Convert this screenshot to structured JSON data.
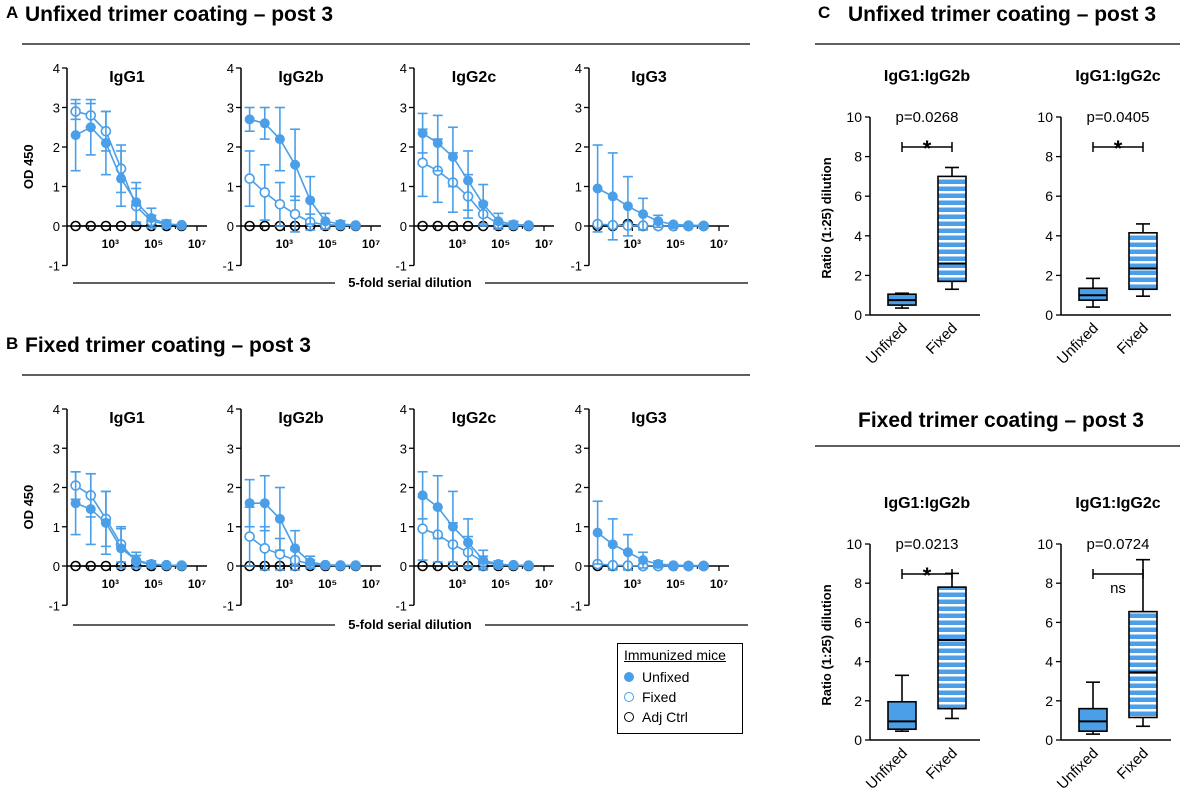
{
  "colors": {
    "blue": "#4A9FE8",
    "black": "#000000",
    "hatch": "#ffffff"
  },
  "panels": {
    "A": {
      "letter": "A",
      "title": "Unfixed trimer coating – post 3"
    },
    "B": {
      "letter": "B",
      "title": "Fixed trimer coating – post 3"
    },
    "C": {
      "letter": "C",
      "title_top": "Unfixed trimer coating – post 3",
      "title_bottom": "Fixed trimer coating – post 3"
    }
  },
  "legend": {
    "title": "Immunized mice",
    "items": [
      {
        "label": "Unfixed",
        "icon": "filled-circle"
      },
      {
        "label": "Fixed",
        "icon": "open-blue-circle"
      },
      {
        "label": "Adj Ctrl",
        "icon": "open-black-circle"
      }
    ]
  },
  "chart_data": [
    {
      "id": "A",
      "type": "line",
      "title": "Unfixed trimer coating – post 3",
      "ylabel": "OD 450",
      "xlabel": "5-fold serial dilution",
      "ylim": [
        -1,
        4
      ],
      "yticks": [
        "4",
        "3",
        "2",
        "1",
        "0",
        "-1"
      ],
      "xscale": "log",
      "xticks": [
        {
          "value": 1000,
          "label": "10³"
        },
        {
          "value": 100000,
          "label": "10⁵"
        },
        {
          "value": 10000000,
          "label": "10⁷"
        }
      ],
      "x": [
        25,
        125,
        625,
        3125,
        15625,
        78125,
        390625,
        1953125
      ],
      "subplots": [
        {
          "title": "IgG1",
          "series": [
            {
              "name": "Unfixed",
              "values": [
                2.3,
                2.5,
                2.1,
                1.2,
                0.6,
                0.2,
                0.05,
                0.02
              ],
              "err": [
                0.9,
                0.7,
                0.8,
                0.7,
                0.5,
                0.25,
                0.1,
                0.05
              ]
            },
            {
              "name": "Fixed",
              "values": [
                2.9,
                2.8,
                2.4,
                1.45,
                0.5,
                0.12,
                0.05,
                0.02
              ],
              "err": [
                0.2,
                0.3,
                0.5,
                0.6,
                0.45,
                0.15,
                0.08,
                0.04
              ]
            },
            {
              "name": "Adj Ctrl",
              "values": [
                0,
                0,
                0,
                0,
                0,
                0,
                0,
                0
              ],
              "err": [
                0,
                0,
                0,
                0,
                0,
                0,
                0,
                0
              ]
            }
          ]
        },
        {
          "title": "IgG2b",
          "series": [
            {
              "name": "Unfixed",
              "values": [
                2.7,
                2.6,
                2.2,
                1.55,
                0.65,
                0.12,
                0.05,
                0.02
              ],
              "err": [
                0.3,
                0.4,
                0.8,
                0.9,
                0.6,
                0.2,
                0.08,
                0.04
              ]
            },
            {
              "name": "Fixed",
              "values": [
                1.2,
                0.85,
                0.55,
                0.3,
                0.1,
                0.03,
                0.02,
                0.01
              ],
              "err": [
                0.7,
                0.7,
                0.55,
                0.45,
                0.2,
                0.06,
                0.04,
                0.02
              ]
            },
            {
              "name": "Adj Ctrl",
              "values": [
                0,
                0,
                0,
                0,
                0,
                0,
                0,
                0
              ],
              "err": [
                0,
                0,
                0,
                0,
                0,
                0,
                0,
                0
              ]
            }
          ]
        },
        {
          "title": "IgG2c",
          "series": [
            {
              "name": "Unfixed",
              "values": [
                2.35,
                2.1,
                1.75,
                1.15,
                0.55,
                0.12,
                0.04,
                0.02
              ],
              "err": [
                0.5,
                0.7,
                0.75,
                0.75,
                0.5,
                0.2,
                0.08,
                0.04
              ]
            },
            {
              "name": "Fixed",
              "values": [
                1.6,
                1.4,
                1.1,
                0.75,
                0.3,
                0.05,
                0.02,
                0.01
              ],
              "err": [
                0.85,
                0.8,
                0.75,
                0.55,
                0.3,
                0.08,
                0.04,
                0.02
              ]
            },
            {
              "name": "Adj Ctrl",
              "values": [
                0,
                0,
                0,
                0,
                0,
                0,
                0,
                0
              ],
              "err": [
                0,
                0,
                0,
                0,
                0,
                0,
                0,
                0
              ]
            }
          ]
        },
        {
          "title": "IgG3",
          "series": [
            {
              "name": "Unfixed",
              "values": [
                0.95,
                0.75,
                0.5,
                0.3,
                0.12,
                0.04,
                0.02,
                0.01
              ],
              "err": [
                1.1,
                1.1,
                0.75,
                0.4,
                0.15,
                0.06,
                0.03,
                0.02
              ]
            },
            {
              "name": "Fixed",
              "values": [
                0.05,
                0.02,
                0.01,
                0.01,
                0,
                0,
                0,
                0
              ],
              "err": [
                0.05,
                0.04,
                0.02,
                0.02,
                0,
                0,
                0,
                0
              ]
            },
            {
              "name": "Adj Ctrl",
              "values": [
                0,
                0,
                0.05,
                0,
                0,
                0,
                0,
                0
              ],
              "err": [
                0,
                0,
                0,
                0,
                0,
                0,
                0,
                0
              ]
            }
          ]
        }
      ]
    },
    {
      "id": "B",
      "type": "line",
      "title": "Fixed trimer coating – post 3",
      "ylabel": "OD 450",
      "xlabel": "5-fold serial dilution",
      "ylim": [
        -1,
        4
      ],
      "yticks": [
        "4",
        "3",
        "2",
        "1",
        "0",
        "-1"
      ],
      "xscale": "log",
      "xticks": [
        {
          "value": 1000,
          "label": "10³"
        },
        {
          "value": 100000,
          "label": "10⁵"
        },
        {
          "value": 10000000,
          "label": "10⁷"
        }
      ],
      "x": [
        25,
        125,
        625,
        3125,
        15625,
        78125,
        390625,
        1953125
      ],
      "subplots": [
        {
          "title": "IgG1",
          "series": [
            {
              "name": "Unfixed",
              "values": [
                1.6,
                1.45,
                1.1,
                0.45,
                0.15,
                0.05,
                0.02,
                0.01
              ],
              "err": [
                0.8,
                0.9,
                0.8,
                0.5,
                0.2,
                0.08,
                0.04,
                0.02
              ]
            },
            {
              "name": "Fixed",
              "values": [
                2.05,
                1.8,
                1.2,
                0.55,
                0.12,
                0.04,
                0.02,
                0.01
              ],
              "err": [
                0.35,
                0.55,
                0.7,
                0.45,
                0.15,
                0.06,
                0.03,
                0.02
              ]
            },
            {
              "name": "Adj Ctrl",
              "values": [
                0,
                0,
                0,
                0,
                0,
                0,
                0,
                0
              ],
              "err": [
                0,
                0,
                0,
                0,
                0,
                0,
                0,
                0
              ]
            }
          ]
        },
        {
          "title": "IgG2b",
          "series": [
            {
              "name": "Unfixed",
              "values": [
                1.6,
                1.6,
                1.2,
                0.45,
                0.1,
                0.03,
                0.02,
                0.01
              ],
              "err": [
                0.6,
                0.7,
                0.8,
                0.45,
                0.15,
                0.05,
                0.03,
                0.02
              ]
            },
            {
              "name": "Fixed",
              "values": [
                0.75,
                0.45,
                0.3,
                0.15,
                0.05,
                0.02,
                0.01,
                0.01
              ],
              "err": [
                0.75,
                0.55,
                0.4,
                0.25,
                0.1,
                0.04,
                0.02,
                0.01
              ]
            },
            {
              "name": "Adj Ctrl",
              "values": [
                0,
                0,
                0,
                0,
                0,
                0,
                0,
                0
              ],
              "err": [
                0,
                0,
                0,
                0,
                0,
                0,
                0,
                0
              ]
            }
          ]
        },
        {
          "title": "IgG2c",
          "series": [
            {
              "name": "Unfixed",
              "values": [
                1.8,
                1.5,
                1.0,
                0.6,
                0.15,
                0.05,
                0.02,
                0.01
              ],
              "err": [
                0.6,
                0.8,
                0.9,
                0.6,
                0.25,
                0.08,
                0.04,
                0.02
              ]
            },
            {
              "name": "Fixed",
              "values": [
                0.95,
                0.8,
                0.55,
                0.35,
                0.1,
                0.03,
                0.02,
                0.01
              ],
              "err": [
                0.8,
                0.7,
                0.55,
                0.4,
                0.15,
                0.05,
                0.03,
                0.01
              ]
            },
            {
              "name": "Adj Ctrl",
              "values": [
                0,
                0,
                0,
                0,
                0,
                0,
                0,
                0
              ],
              "err": [
                0,
                0,
                0,
                0,
                0,
                0,
                0,
                0
              ]
            }
          ]
        },
        {
          "title": "IgG3",
          "series": [
            {
              "name": "Unfixed",
              "values": [
                0.85,
                0.55,
                0.35,
                0.15,
                0.05,
                0.02,
                0.01,
                0.01
              ],
              "err": [
                0.8,
                0.65,
                0.45,
                0.2,
                0.08,
                0.03,
                0.02,
                0.01
              ]
            },
            {
              "name": "Fixed",
              "values": [
                0.05,
                0.02,
                0.01,
                0,
                0,
                0,
                0,
                0
              ],
              "err": [
                0.05,
                0.03,
                0.02,
                0,
                0,
                0,
                0,
                0
              ]
            },
            {
              "name": "Adj Ctrl",
              "values": [
                0,
                0,
                0,
                0,
                0,
                0,
                0,
                0
              ],
              "err": [
                0,
                0,
                0,
                0,
                0,
                0,
                0,
                0
              ]
            }
          ]
        }
      ]
    },
    {
      "id": "C-top",
      "type": "box",
      "title": "Unfixed trimer coating – post 3",
      "ylabel": "Ratio (1:25) dilution",
      "ylim": [
        0,
        10
      ],
      "yticks": [
        "0",
        "2",
        "4",
        "6",
        "8",
        "10"
      ],
      "categories": [
        "Unfixed",
        "Fixed"
      ],
      "subplots": [
        {
          "title": "IgG1:IgG2b",
          "p": "p=0.0268",
          "sig": "*",
          "boxes": [
            {
              "group": "Unfixed",
              "min": 0.35,
              "q1": 0.5,
              "median": 0.75,
              "q3": 1.05,
              "max": 1.1
            },
            {
              "group": "Fixed",
              "min": 1.3,
              "q1": 1.7,
              "median": 2.6,
              "q3": 7.0,
              "max": 7.45
            }
          ]
        },
        {
          "title": "IgG1:IgG2c",
          "p": "p=0.0405",
          "sig": "*",
          "boxes": [
            {
              "group": "Unfixed",
              "min": 0.4,
              "q1": 0.75,
              "median": 1.0,
              "q3": 1.35,
              "max": 1.85
            },
            {
              "group": "Fixed",
              "min": 0.95,
              "q1": 1.3,
              "median": 2.35,
              "q3": 4.15,
              "max": 4.6
            }
          ]
        }
      ]
    },
    {
      "id": "C-bottom",
      "type": "box",
      "title": "Fixed trimer coating – post 3",
      "ylabel": "Ratio (1:25) dilution",
      "ylim": [
        0,
        10
      ],
      "yticks": [
        "0",
        "2",
        "4",
        "6",
        "8",
        "10"
      ],
      "categories": [
        "Unfixed",
        "Fixed"
      ],
      "subplots": [
        {
          "title": "IgG1:IgG2b",
          "p": "p=0.0213",
          "sig": "*",
          "boxes": [
            {
              "group": "Unfixed",
              "min": 0.45,
              "q1": 0.55,
              "median": 0.95,
              "q3": 1.95,
              "max": 3.3
            },
            {
              "group": "Fixed",
              "min": 1.1,
              "q1": 1.6,
              "median": 5.1,
              "q3": 7.8,
              "max": 8.5
            }
          ]
        },
        {
          "title": "IgG1:IgG2c",
          "p": "p=0.0724",
          "sig": "ns",
          "boxes": [
            {
              "group": "Unfixed",
              "min": 0.3,
              "q1": 0.45,
              "median": 0.95,
              "q3": 1.6,
              "max": 2.95
            },
            {
              "group": "Fixed",
              "min": 0.7,
              "q1": 1.15,
              "median": 3.45,
              "q3": 6.55,
              "max": 9.2
            }
          ]
        }
      ]
    }
  ]
}
